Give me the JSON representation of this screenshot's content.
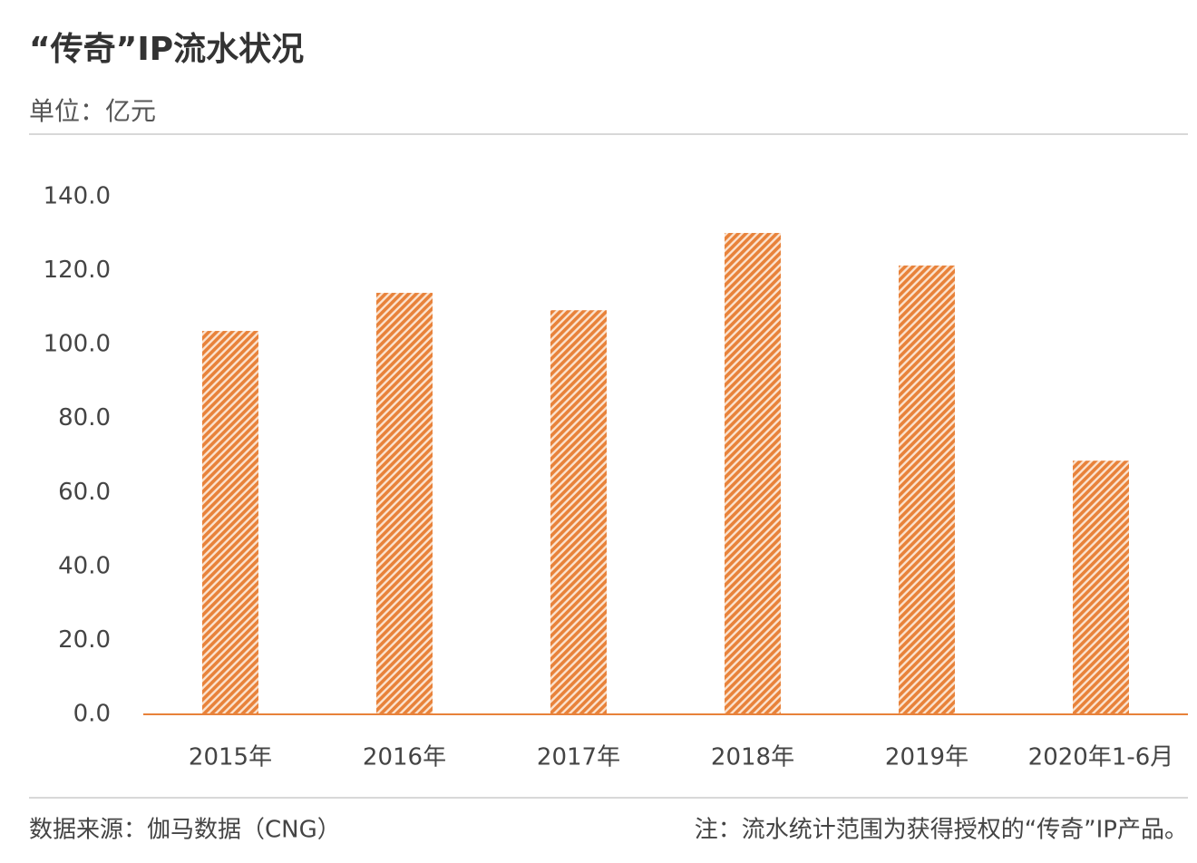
{
  "chart_data": {
    "type": "bar",
    "title": "“传奇”IP流水状况",
    "subtitle": "单位：亿元",
    "source": "数据来源：伽马数据（CNG）",
    "note": "注：流水统计范围为获得授权的“传奇”IP产品。",
    "categories": [
      "2015年",
      "2016年",
      "2017年",
      "2018年",
      "2019年",
      "2020年1-6月"
    ],
    "values": [
      103.7,
      114.0,
      109.3,
      130.2,
      121.4,
      68.6
    ],
    "color": "#e8823a",
    "ylim": [
      0,
      140
    ],
    "yticks": [
      {
        "value": 0,
        "label": "0.0"
      },
      {
        "value": 20,
        "label": "20.0"
      },
      {
        "value": 40,
        "label": "40.0"
      },
      {
        "value": 60,
        "label": "60.0"
      },
      {
        "value": 80,
        "label": "80.0"
      },
      {
        "value": 100,
        "label": "100.0"
      },
      {
        "value": 120,
        "label": "120.0"
      },
      {
        "value": 140,
        "label": "140.0"
      }
    ],
    "grid": false
  }
}
